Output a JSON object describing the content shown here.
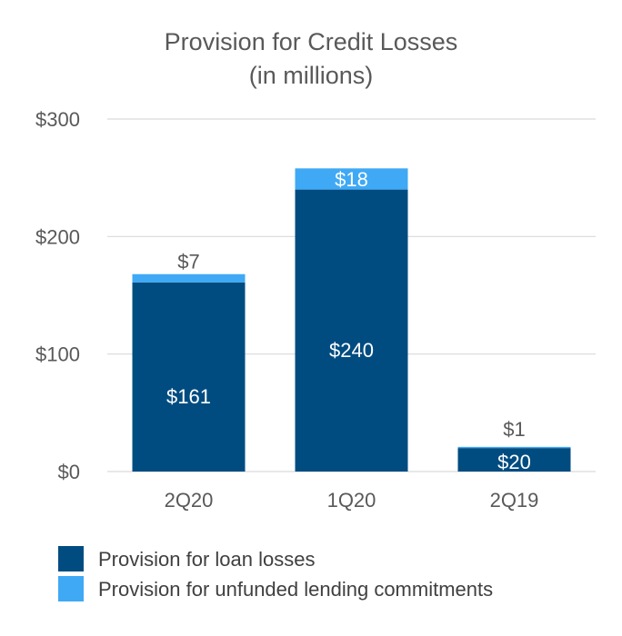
{
  "chart_data": {
    "type": "bar",
    "stacked": true,
    "title": "Provision for Credit Losses",
    "subtitle": "(in millions)",
    "categories": [
      "2Q20",
      "1Q20",
      "2Q19"
    ],
    "series": [
      {
        "name": "Provision for loan losses",
        "values": [
          161,
          240,
          20
        ],
        "labels": [
          "$161",
          "$240",
          "$20"
        ],
        "color": "#004c80"
      },
      {
        "name": "Provision for unfunded lending commitments",
        "values": [
          7,
          18,
          1
        ],
        "labels": [
          "$7",
          "$18",
          "$1"
        ],
        "color": "#3fa9f5"
      }
    ],
    "yticks": [
      0,
      100,
      200,
      300
    ],
    "ytick_labels": [
      "$0",
      "$100",
      "$200",
      "$300"
    ],
    "ylim": [
      0,
      300
    ],
    "grid": true,
    "legend_position": "bottom-left"
  }
}
